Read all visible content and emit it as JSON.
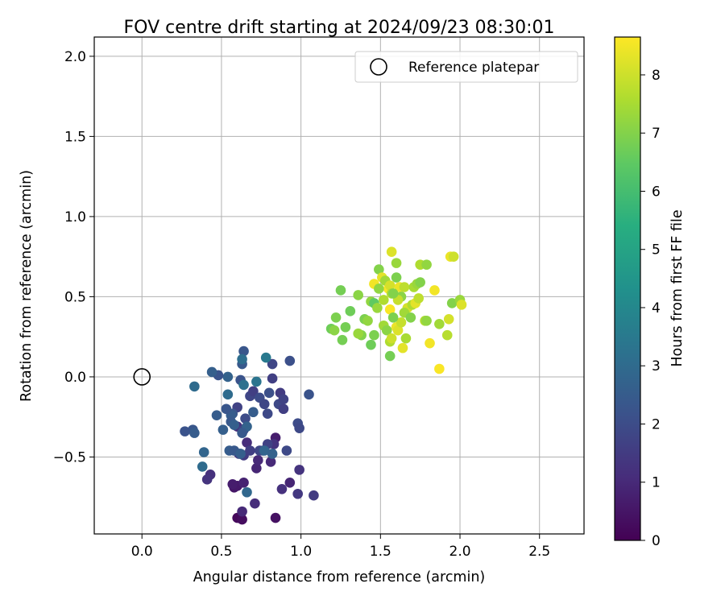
{
  "chart_data": {
    "type": "scatter",
    "title": "FOV centre drift starting at 2024/09/23 08:30:01",
    "xlabel": "Angular distance from reference (arcmin)",
    "ylabel": "Rotation from reference (arcmin)",
    "xlim": [
      -0.3,
      2.78
    ],
    "ylim": [
      -0.98,
      2.12
    ],
    "xticks": [
      "0.0",
      "0.5",
      "1.0",
      "1.5",
      "2.0",
      "2.5"
    ],
    "xtick_values": [
      0,
      0.5,
      1,
      1.5,
      2,
      2.5
    ],
    "yticks": [
      "−0.5",
      "0.0",
      "0.5",
      "1.0",
      "1.5",
      "2.0"
    ],
    "ytick_values": [
      -0.5,
      0,
      0.5,
      1,
      1.5,
      2
    ],
    "grid": true,
    "legend": {
      "position": "top-right",
      "entries": [
        "Reference platepar"
      ]
    },
    "reference_point": {
      "x": 0,
      "y": 0
    },
    "colorbar": {
      "label": "Hours from first FF file",
      "colormap": "viridis",
      "range": [
        0,
        8.65
      ],
      "ticks": [
        "0",
        "1",
        "2",
        "3",
        "4",
        "5",
        "6",
        "7",
        "8"
      ],
      "tick_values": [
        0,
        1,
        2,
        3,
        4,
        5,
        6,
        7,
        8
      ]
    },
    "points": [
      {
        "x": 0.6,
        "y": -0.88,
        "t": 0.2
      },
      {
        "x": 0.63,
        "y": -0.89,
        "t": 0.3
      },
      {
        "x": 0.84,
        "y": -0.88,
        "t": 0.4
      },
      {
        "x": 0.58,
        "y": -0.69,
        "t": 0.5
      },
      {
        "x": 0.6,
        "y": -0.68,
        "t": 0.6
      },
      {
        "x": 0.57,
        "y": -0.67,
        "t": 0.7
      },
      {
        "x": 0.64,
        "y": -0.66,
        "t": 0.8
      },
      {
        "x": 0.93,
        "y": -0.66,
        "t": 0.9
      },
      {
        "x": 0.63,
        "y": -0.84,
        "t": 1.0
      },
      {
        "x": 0.71,
        "y": -0.79,
        "t": 1.1
      },
      {
        "x": 0.88,
        "y": -0.7,
        "t": 1.2
      },
      {
        "x": 0.84,
        "y": -0.38,
        "t": 0.7
      },
      {
        "x": 0.72,
        "y": -0.57,
        "t": 0.9
      },
      {
        "x": 0.81,
        "y": -0.53,
        "t": 1.0
      },
      {
        "x": 0.66,
        "y": -0.41,
        "t": 1.1
      },
      {
        "x": 0.6,
        "y": -0.31,
        "t": 1.2
      },
      {
        "x": 0.73,
        "y": -0.52,
        "t": 1.0
      },
      {
        "x": 0.83,
        "y": -0.42,
        "t": 1.3
      },
      {
        "x": 0.61,
        "y": -0.48,
        "t": 1.4
      },
      {
        "x": 0.64,
        "y": -0.49,
        "t": 1.5
      },
      {
        "x": 0.99,
        "y": -0.58,
        "t": 1.3
      },
      {
        "x": 0.98,
        "y": -0.73,
        "t": 1.4
      },
      {
        "x": 1.08,
        "y": -0.74,
        "t": 1.5
      },
      {
        "x": 0.43,
        "y": -0.61,
        "t": 1.2
      },
      {
        "x": 0.41,
        "y": -0.64,
        "t": 1.3
      },
      {
        "x": 0.68,
        "y": -0.46,
        "t": 1.6
      },
      {
        "x": 0.74,
        "y": -0.46,
        "t": 1.8
      },
      {
        "x": 0.79,
        "y": -0.42,
        "t": 1.7
      },
      {
        "x": 0.76,
        "y": -0.46,
        "t": 1.9
      },
      {
        "x": 0.91,
        "y": -0.46,
        "t": 1.9
      },
      {
        "x": 0.6,
        "y": -0.19,
        "t": 1.7
      },
      {
        "x": 0.64,
        "y": -0.33,
        "t": 1.8
      },
      {
        "x": 0.65,
        "y": -0.26,
        "t": 2.0
      },
      {
        "x": 0.68,
        "y": -0.12,
        "t": 1.8
      },
      {
        "x": 0.7,
        "y": -0.09,
        "t": 1.6
      },
      {
        "x": 0.74,
        "y": -0.13,
        "t": 2.0
      },
      {
        "x": 0.77,
        "y": -0.17,
        "t": 1.8
      },
      {
        "x": 0.79,
        "y": -0.23,
        "t": 1.9
      },
      {
        "x": 0.8,
        "y": -0.1,
        "t": 2.1
      },
      {
        "x": 0.86,
        "y": -0.17,
        "t": 1.9
      },
      {
        "x": 0.87,
        "y": -0.1,
        "t": 1.5
      },
      {
        "x": 0.89,
        "y": -0.14,
        "t": 1.7
      },
      {
        "x": 0.89,
        "y": -0.2,
        "t": 1.6
      },
      {
        "x": 0.98,
        "y": -0.29,
        "t": 2.0
      },
      {
        "x": 0.99,
        "y": -0.32,
        "t": 1.9
      },
      {
        "x": 1.05,
        "y": -0.11,
        "t": 2.2
      },
      {
        "x": 0.82,
        "y": 0.08,
        "t": 1.8
      },
      {
        "x": 0.93,
        "y": 0.1,
        "t": 2.1
      },
      {
        "x": 0.82,
        "y": -0.01,
        "t": 1.6
      },
      {
        "x": 0.62,
        "y": -0.02,
        "t": 2.2
      },
      {
        "x": 0.64,
        "y": 0.16,
        "t": 2.3
      },
      {
        "x": 0.63,
        "y": 0.08,
        "t": 2.4
      },
      {
        "x": 0.57,
        "y": -0.23,
        "t": 2.3
      },
      {
        "x": 0.56,
        "y": -0.24,
        "t": 2.5
      },
      {
        "x": 0.56,
        "y": -0.28,
        "t": 2.4
      },
      {
        "x": 0.58,
        "y": -0.3,
        "t": 2.6
      },
      {
        "x": 0.55,
        "y": -0.46,
        "t": 2.5
      },
      {
        "x": 0.58,
        "y": -0.46,
        "t": 2.4
      },
      {
        "x": 0.62,
        "y": -0.48,
        "t": 2.6
      },
      {
        "x": 0.66,
        "y": -0.31,
        "t": 2.7
      },
      {
        "x": 0.7,
        "y": -0.22,
        "t": 2.5
      },
      {
        "x": 0.77,
        "y": -0.46,
        "t": 2.8
      },
      {
        "x": 0.82,
        "y": -0.48,
        "t": 2.7
      },
      {
        "x": 0.66,
        "y": -0.72,
        "t": 2.9
      },
      {
        "x": 0.63,
        "y": -0.35,
        "t": 2.4
      },
      {
        "x": 0.51,
        "y": -0.33,
        "t": 2.6
      },
      {
        "x": 0.47,
        "y": -0.24,
        "t": 2.5
      },
      {
        "x": 0.53,
        "y": -0.2,
        "t": 2.3
      },
      {
        "x": 0.54,
        "y": -0.11,
        "t": 3.0
      },
      {
        "x": 0.54,
        "y": 0.0,
        "t": 2.7
      },
      {
        "x": 0.48,
        "y": 0.01,
        "t": 2.2
      },
      {
        "x": 0.44,
        "y": 0.03,
        "t": 2.6
      },
      {
        "x": 0.32,
        "y": -0.33,
        "t": 2.3
      },
      {
        "x": 0.33,
        "y": -0.35,
        "t": 2.5
      },
      {
        "x": 0.27,
        "y": -0.34,
        "t": 2.2
      },
      {
        "x": 0.39,
        "y": -0.47,
        "t": 2.8
      },
      {
        "x": 0.38,
        "y": -0.56,
        "t": 3.0
      },
      {
        "x": 0.33,
        "y": -0.06,
        "t": 3.0
      },
      {
        "x": 0.64,
        "y": -0.05,
        "t": 3.2
      },
      {
        "x": 0.72,
        "y": -0.03,
        "t": 3.3
      },
      {
        "x": 0.78,
        "y": 0.12,
        "t": 3.5
      },
      {
        "x": 0.63,
        "y": 0.11,
        "t": 3.1
      },
      {
        "x": 1.57,
        "y": 0.78,
        "t": 8.2
      },
      {
        "x": 1.6,
        "y": 0.71,
        "t": 7.3
      },
      {
        "x": 1.75,
        "y": 0.7,
        "t": 7.6
      },
      {
        "x": 1.79,
        "y": 0.7,
        "t": 7.2
      },
      {
        "x": 1.94,
        "y": 0.75,
        "t": 8.4
      },
      {
        "x": 1.96,
        "y": 0.75,
        "t": 8.0
      },
      {
        "x": 1.49,
        "y": 0.67,
        "t": 7.0
      },
      {
        "x": 1.51,
        "y": 0.62,
        "t": 8.3
      },
      {
        "x": 1.46,
        "y": 0.58,
        "t": 8.5
      },
      {
        "x": 1.53,
        "y": 0.6,
        "t": 7.4
      },
      {
        "x": 1.6,
        "y": 0.62,
        "t": 6.9
      },
      {
        "x": 1.55,
        "y": 0.55,
        "t": 8.6
      },
      {
        "x": 1.56,
        "y": 0.57,
        "t": 8.1
      },
      {
        "x": 1.62,
        "y": 0.56,
        "t": 8.4
      },
      {
        "x": 1.65,
        "y": 0.56,
        "t": 7.8
      },
      {
        "x": 1.57,
        "y": 0.52,
        "t": 7.7
      },
      {
        "x": 1.63,
        "y": 0.5,
        "t": 7.1
      },
      {
        "x": 1.71,
        "y": 0.56,
        "t": 7.5
      },
      {
        "x": 1.73,
        "y": 0.58,
        "t": 7.3
      },
      {
        "x": 1.75,
        "y": 0.59,
        "t": 7.0
      },
      {
        "x": 1.84,
        "y": 0.54,
        "t": 8.5
      },
      {
        "x": 1.25,
        "y": 0.54,
        "t": 6.8
      },
      {
        "x": 1.36,
        "y": 0.51,
        "t": 7.1
      },
      {
        "x": 1.44,
        "y": 0.47,
        "t": 7.2
      },
      {
        "x": 1.46,
        "y": 0.46,
        "t": 6.5
      },
      {
        "x": 1.48,
        "y": 0.43,
        "t": 7.3
      },
      {
        "x": 1.56,
        "y": 0.42,
        "t": 8.6
      },
      {
        "x": 1.61,
        "y": 0.48,
        "t": 7.9
      },
      {
        "x": 1.67,
        "y": 0.43,
        "t": 8.1
      },
      {
        "x": 1.7,
        "y": 0.45,
        "t": 7.6
      },
      {
        "x": 1.72,
        "y": 0.46,
        "t": 8.3
      },
      {
        "x": 1.65,
        "y": 0.4,
        "t": 7.4
      },
      {
        "x": 1.69,
        "y": 0.37,
        "t": 7.0
      },
      {
        "x": 1.78,
        "y": 0.35,
        "t": 7.6
      },
      {
        "x": 1.79,
        "y": 0.35,
        "t": 7.2
      },
      {
        "x": 1.87,
        "y": 0.33,
        "t": 7.4
      },
      {
        "x": 1.93,
        "y": 0.36,
        "t": 8.1
      },
      {
        "x": 1.95,
        "y": 0.46,
        "t": 7.0
      },
      {
        "x": 2.0,
        "y": 0.48,
        "t": 7.3
      },
      {
        "x": 2.01,
        "y": 0.45,
        "t": 8.2
      },
      {
        "x": 1.31,
        "y": 0.41,
        "t": 6.7
      },
      {
        "x": 1.4,
        "y": 0.36,
        "t": 6.9
      },
      {
        "x": 1.42,
        "y": 0.35,
        "t": 7.2
      },
      {
        "x": 1.22,
        "y": 0.37,
        "t": 6.9
      },
      {
        "x": 1.19,
        "y": 0.3,
        "t": 6.7
      },
      {
        "x": 1.21,
        "y": 0.29,
        "t": 7.1
      },
      {
        "x": 1.28,
        "y": 0.31,
        "t": 6.8
      },
      {
        "x": 1.38,
        "y": 0.26,
        "t": 7.0
      },
      {
        "x": 1.36,
        "y": 0.27,
        "t": 7.3
      },
      {
        "x": 1.44,
        "y": 0.2,
        "t": 6.7
      },
      {
        "x": 1.46,
        "y": 0.26,
        "t": 6.9
      },
      {
        "x": 1.52,
        "y": 0.32,
        "t": 7.4
      },
      {
        "x": 1.54,
        "y": 0.29,
        "t": 7.1
      },
      {
        "x": 1.56,
        "y": 0.22,
        "t": 7.6
      },
      {
        "x": 1.57,
        "y": 0.24,
        "t": 8.0
      },
      {
        "x": 1.6,
        "y": 0.31,
        "t": 8.4
      },
      {
        "x": 1.61,
        "y": 0.29,
        "t": 8.2
      },
      {
        "x": 1.63,
        "y": 0.34,
        "t": 7.9
      },
      {
        "x": 1.64,
        "y": 0.18,
        "t": 8.3
      },
      {
        "x": 1.66,
        "y": 0.24,
        "t": 7.5
      },
      {
        "x": 1.26,
        "y": 0.23,
        "t": 6.8
      },
      {
        "x": 1.56,
        "y": 0.13,
        "t": 6.8
      },
      {
        "x": 1.81,
        "y": 0.21,
        "t": 8.5
      },
      {
        "x": 1.92,
        "y": 0.26,
        "t": 7.7
      },
      {
        "x": 1.87,
        "y": 0.05,
        "t": 8.6
      },
      {
        "x": 1.58,
        "y": 0.52,
        "t": 7.0
      },
      {
        "x": 1.52,
        "y": 0.48,
        "t": 7.6
      },
      {
        "x": 1.49,
        "y": 0.55,
        "t": 7.2
      },
      {
        "x": 1.74,
        "y": 0.49,
        "t": 7.8
      },
      {
        "x": 1.58,
        "y": 0.37,
        "t": 6.9
      }
    ]
  }
}
